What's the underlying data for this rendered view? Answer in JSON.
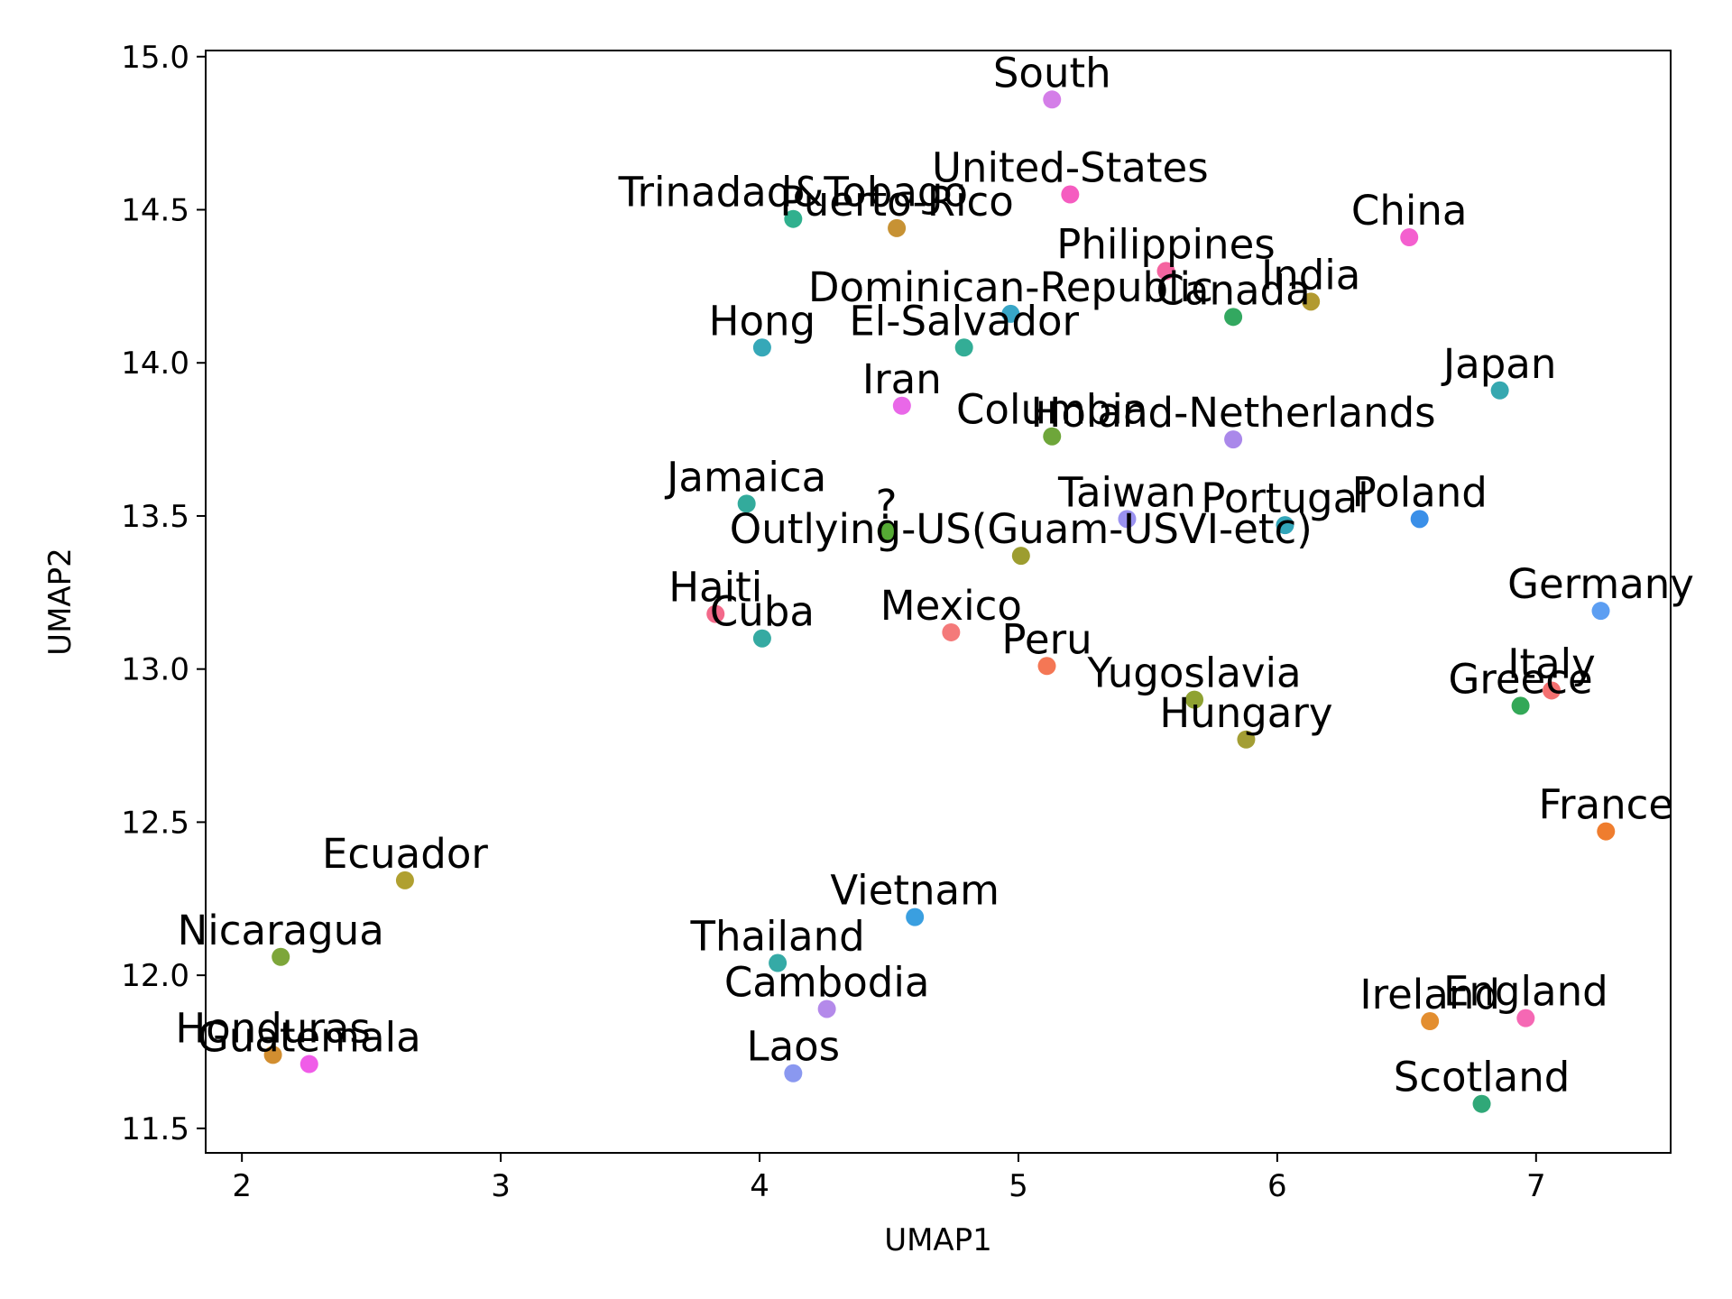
{
  "chart_data": {
    "type": "scatter",
    "title": "",
    "xlabel": "UMAP1",
    "ylabel": "UMAP2",
    "xlim": [
      1.86,
      7.52
    ],
    "ylim": [
      11.42,
      15.02
    ],
    "xticks": [
      2,
      3,
      4,
      5,
      6,
      7
    ],
    "yticks": [
      11.5,
      12.0,
      12.5,
      13.0,
      13.5,
      14.0,
      14.5,
      15.0
    ],
    "xtick_labels": [
      "2",
      "3",
      "4",
      "5",
      "6",
      "7"
    ],
    "ytick_labels": [
      "11.5",
      "12.0",
      "12.5",
      "13.0",
      "13.5",
      "14.0",
      "14.5",
      "15.0"
    ],
    "grid": false,
    "legend": "none",
    "points": [
      {
        "label": "South",
        "x": 5.13,
        "y": 14.86,
        "color": "#d47ee8"
      },
      {
        "label": "United-States",
        "x": 5.2,
        "y": 14.55,
        "color": "#f55cc0"
      },
      {
        "label": "Trinadad&Tobago",
        "x": 4.13,
        "y": 14.47,
        "color": "#30b08e"
      },
      {
        "label": "Puerto-Rico",
        "x": 4.53,
        "y": 14.44,
        "color": "#c79234"
      },
      {
        "label": "China",
        "x": 6.51,
        "y": 14.41,
        "color": "#f45fcf"
      },
      {
        "label": "Philippines",
        "x": 5.57,
        "y": 14.3,
        "color": "#f564a0"
      },
      {
        "label": "India",
        "x": 6.13,
        "y": 14.2,
        "color": "#b29a30"
      },
      {
        "label": "Dominican-Republic",
        "x": 4.97,
        "y": 14.16,
        "color": "#38a6c7"
      },
      {
        "label": "Canada",
        "x": 5.83,
        "y": 14.15,
        "color": "#33a860"
      },
      {
        "label": "Hong",
        "x": 4.01,
        "y": 14.05,
        "color": "#36a8b8"
      },
      {
        "label": "El-Salvador",
        "x": 4.79,
        "y": 14.05,
        "color": "#33ad96"
      },
      {
        "label": "Japan",
        "x": 6.86,
        "y": 13.91,
        "color": "#36a8b0"
      },
      {
        "label": "Iran",
        "x": 4.55,
        "y": 13.86,
        "color": "#e968e8"
      },
      {
        "label": "Columbia",
        "x": 5.13,
        "y": 13.76,
        "color": "#6ea63a"
      },
      {
        "label": "Holand-Netherlands",
        "x": 5.83,
        "y": 13.75,
        "color": "#aa88ea"
      },
      {
        "label": "Jamaica",
        "x": 3.95,
        "y": 13.54,
        "color": "#33ab9c"
      },
      {
        "label": "Taiwan",
        "x": 5.42,
        "y": 13.49,
        "color": "#9a92f0"
      },
      {
        "label": "Poland",
        "x": 6.55,
        "y": 13.49,
        "color": "#3a8fe8"
      },
      {
        "label": "Portugal",
        "x": 6.03,
        "y": 13.47,
        "color": "#32a6ba"
      },
      {
        "label": "?",
        "x": 4.49,
        "y": 13.45,
        "color": "#55aa34"
      },
      {
        "label": "Outlying-US(Guam-USVI-etc)",
        "x": 5.01,
        "y": 13.37,
        "color": "#9d9d30"
      },
      {
        "label": "Germany",
        "x": 7.25,
        "y": 13.19,
        "color": "#5c9ef2"
      },
      {
        "label": "Haiti",
        "x": 3.83,
        "y": 13.18,
        "color": "#f3698a"
      },
      {
        "label": "Mexico",
        "x": 4.74,
        "y": 13.12,
        "color": "#f47a7a"
      },
      {
        "label": "Cuba",
        "x": 4.01,
        "y": 13.1,
        "color": "#35aaa2"
      },
      {
        "label": "Peru",
        "x": 5.11,
        "y": 13.01,
        "color": "#f47755"
      },
      {
        "label": "Italy",
        "x": 7.06,
        "y": 12.93,
        "color": "#f47070"
      },
      {
        "label": "Yugoslavia",
        "x": 5.68,
        "y": 12.9,
        "color": "#8fa232"
      },
      {
        "label": "Greece",
        "x": 6.94,
        "y": 12.88,
        "color": "#33a857"
      },
      {
        "label": "Hungary",
        "x": 5.88,
        "y": 12.77,
        "color": "#a39e34"
      },
      {
        "label": "France",
        "x": 7.27,
        "y": 12.47,
        "color": "#ef7d2e"
      },
      {
        "label": "Ecuador",
        "x": 2.63,
        "y": 12.31,
        "color": "#b0a030"
      },
      {
        "label": "Vietnam",
        "x": 4.6,
        "y": 12.19,
        "color": "#3a9fe0"
      },
      {
        "label": "Nicaragua",
        "x": 2.15,
        "y": 12.06,
        "color": "#7da63a"
      },
      {
        "label": "Thailand",
        "x": 4.07,
        "y": 12.04,
        "color": "#35aaa6"
      },
      {
        "label": "Cambodia",
        "x": 4.26,
        "y": 11.89,
        "color": "#b48aea"
      },
      {
        "label": "England",
        "x": 6.96,
        "y": 11.86,
        "color": "#f568b4"
      },
      {
        "label": "Ireland",
        "x": 6.59,
        "y": 11.85,
        "color": "#e38e30"
      },
      {
        "label": "Honduras",
        "x": 2.12,
        "y": 11.74,
        "color": "#d28e30"
      },
      {
        "label": "Guatemala",
        "x": 2.26,
        "y": 11.71,
        "color": "#f05ce8"
      },
      {
        "label": "Laos",
        "x": 4.13,
        "y": 11.68,
        "color": "#8a98f0"
      },
      {
        "label": "Scotland",
        "x": 6.79,
        "y": 11.58,
        "color": "#30a878"
      }
    ]
  }
}
